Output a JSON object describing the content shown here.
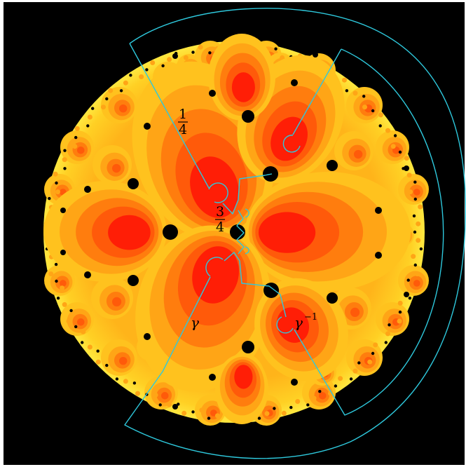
{
  "labels": {
    "quarter_num": "1",
    "quarter_den": "4",
    "three_quarter_num": "3",
    "three_quarter_den": "4",
    "gamma": "γ",
    "gamma_inverse_base": "γ",
    "gamma_inverse_exp": "−1"
  },
  "colors": {
    "background": "#000000",
    "frame": "#ffffff",
    "disk_outer": "#ffe02a",
    "band_1": "#ffc21e",
    "band_2": "#ffa516",
    "band_3": "#ff7d0e",
    "band_4": "#ff5a0a",
    "core": "#ff1e06",
    "holes": "#000000",
    "curve": "#2ec8dc"
  }
}
